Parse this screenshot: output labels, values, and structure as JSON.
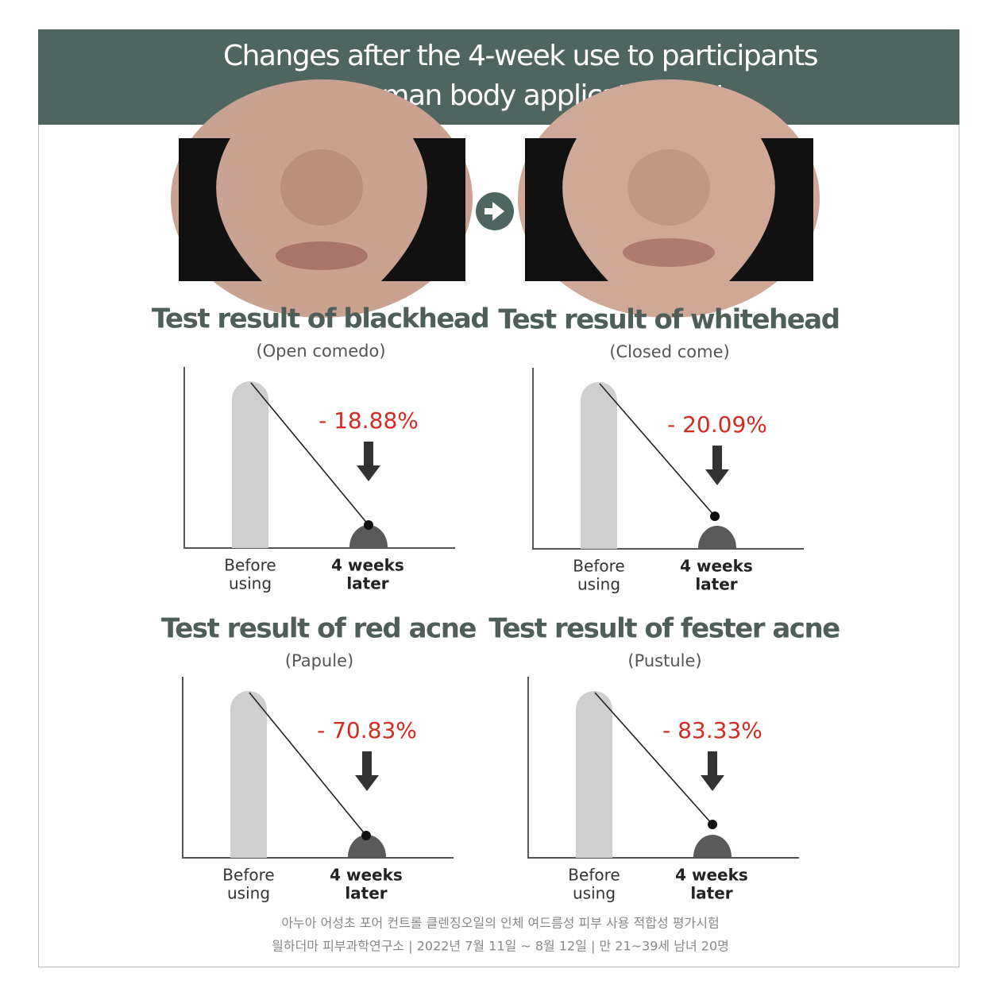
{
  "header": {
    "title": [
      "Changes after the 4-week use to participants",
      "of human body application test"
    ]
  },
  "panels": [
    {
      "title": "Test result of blackhead",
      "subtitle": "(Open comedo)",
      "change": "- 18.88%",
      "before": [
        "Before",
        "using"
      ],
      "after": [
        "4 weeks",
        "later"
      ]
    },
    {
      "title": "Test result of whitehead",
      "subtitle": "(Closed come)",
      "change": "- 20.09%",
      "before": [
        "Before",
        "using"
      ],
      "after": [
        "4 weeks",
        "later"
      ]
    },
    {
      "title": "Test result of red acne",
      "subtitle": "(Papule)",
      "change": "- 70.83%",
      "before": [
        "Before",
        "using"
      ],
      "after": [
        "4 weeks",
        "later"
      ]
    },
    {
      "title": "Test result of fester acne",
      "subtitle": "(Pustule)",
      "change": "- 83.33%",
      "before": [
        "Before",
        "using"
      ],
      "after": [
        "4 weeks",
        "later"
      ]
    }
  ],
  "footer": [
    "아누아 어성초 포어 컨트롤 클렌징오일의 인체 여드름성 피부 사용 적합성 평가시험",
    "읠하더마 피부과학연구소 | 2022년 7월 11일 ~ 8월 12일 | 만 21~39세 남녀 20명"
  ]
}
